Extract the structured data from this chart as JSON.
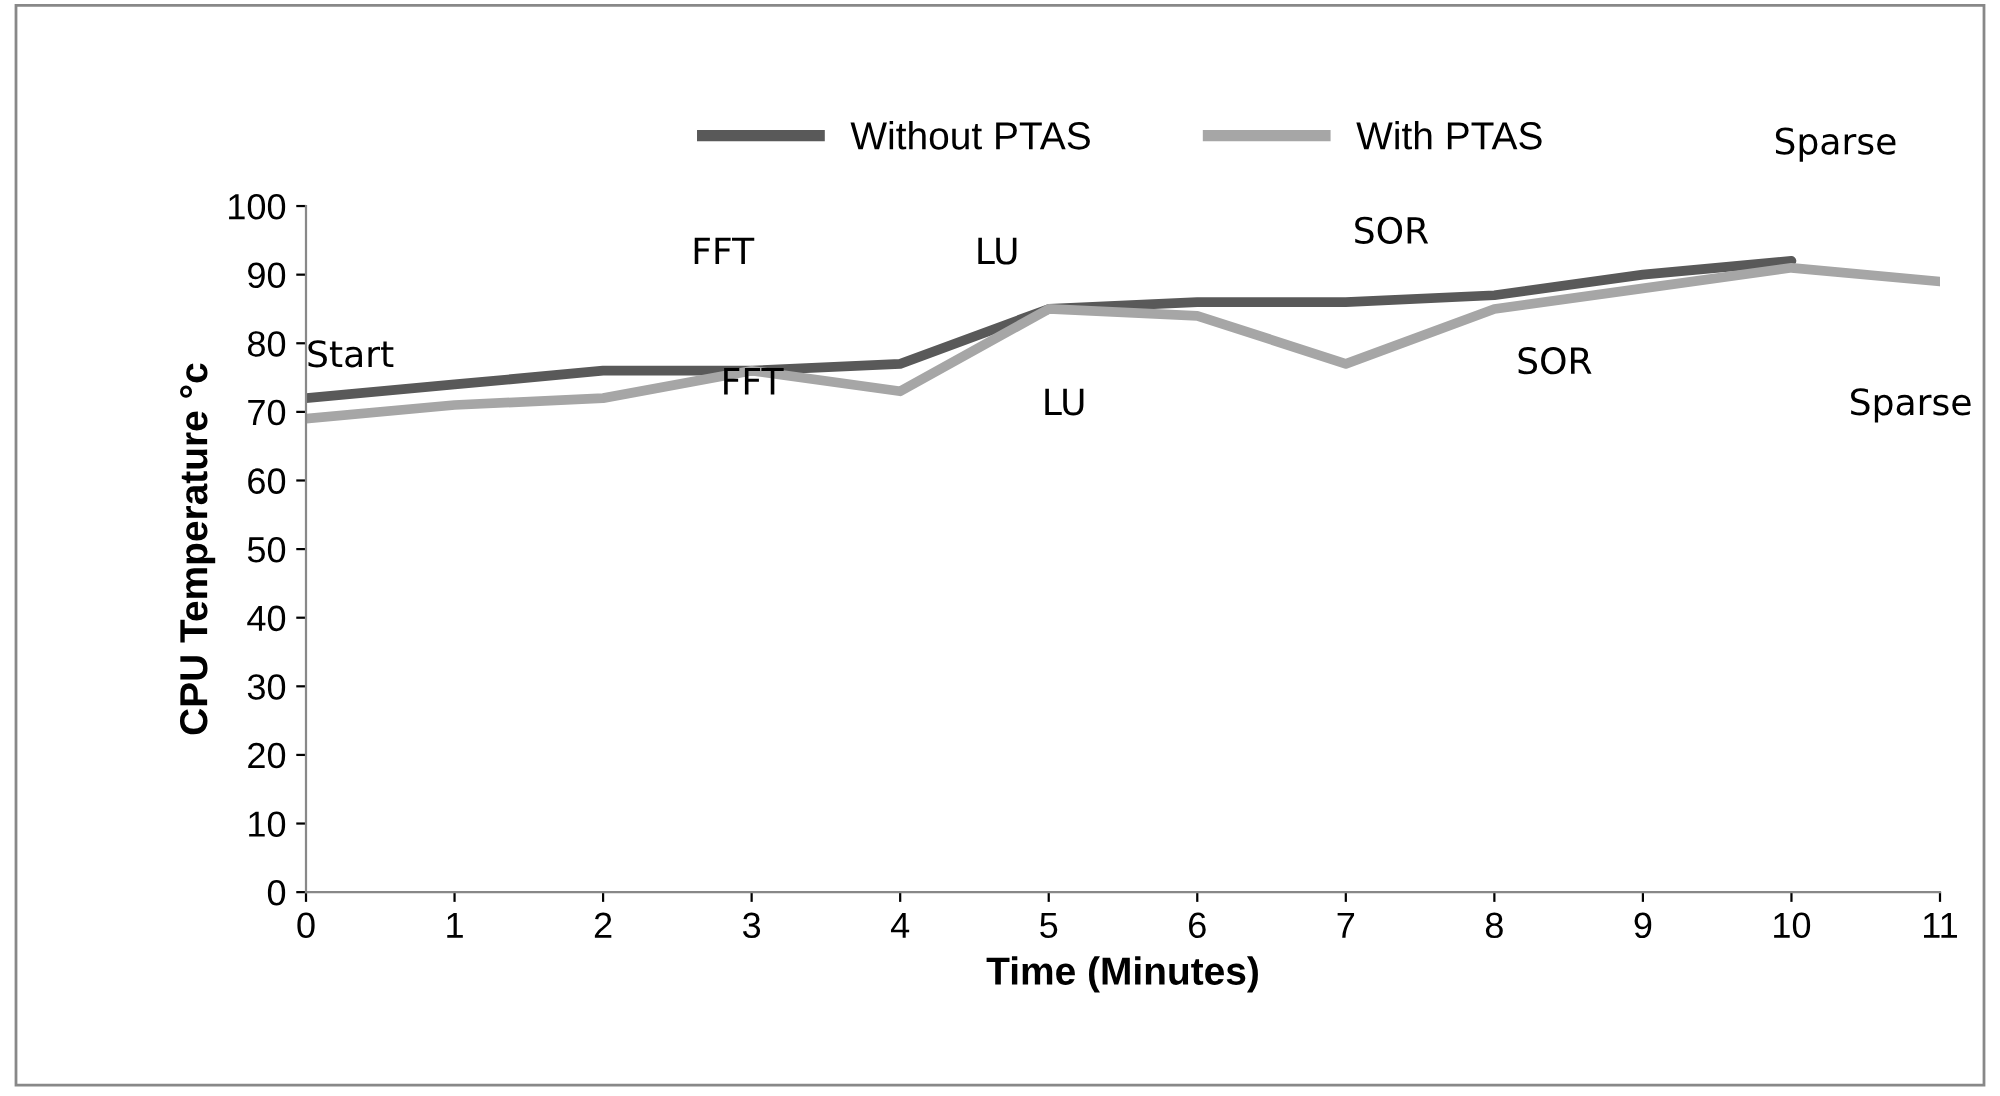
{
  "chart_data": {
    "type": "line",
    "xlabel": "Time (Minutes)",
    "ylabel": "CPU Temperature °c",
    "x": [
      0,
      1,
      2,
      3,
      4,
      5,
      6,
      7,
      8,
      9,
      10,
      11
    ],
    "series": [
      {
        "name": "Without PTAS",
        "color": "#595959",
        "values": [
          72,
          74,
          76,
          76,
          77,
          85,
          86,
          86,
          87,
          90,
          92,
          null
        ]
      },
      {
        "name": "With PTAS",
        "color": "#a6a6a6",
        "values": [
          69,
          71,
          72,
          76,
          73,
          85,
          84,
          77,
          85,
          88,
          91,
          89
        ]
      }
    ],
    "xlim": [
      0,
      11
    ],
    "xticks": [
      0,
      1,
      2,
      3,
      4,
      5,
      6,
      7,
      8,
      9,
      10,
      11
    ],
    "ylim": [
      0,
      100
    ],
    "yticks": [
      0,
      10,
      20,
      30,
      40,
      50,
      60,
      70,
      80,
      90,
      100
    ],
    "grid": false,
    "legend": "top",
    "marker": "none",
    "line_style": "solid",
    "annotations": [
      "Start",
      "FFT",
      "FFT",
      "LU",
      "LU",
      "SOR",
      "SOR",
      "Sparse",
      "Sparse"
    ]
  }
}
